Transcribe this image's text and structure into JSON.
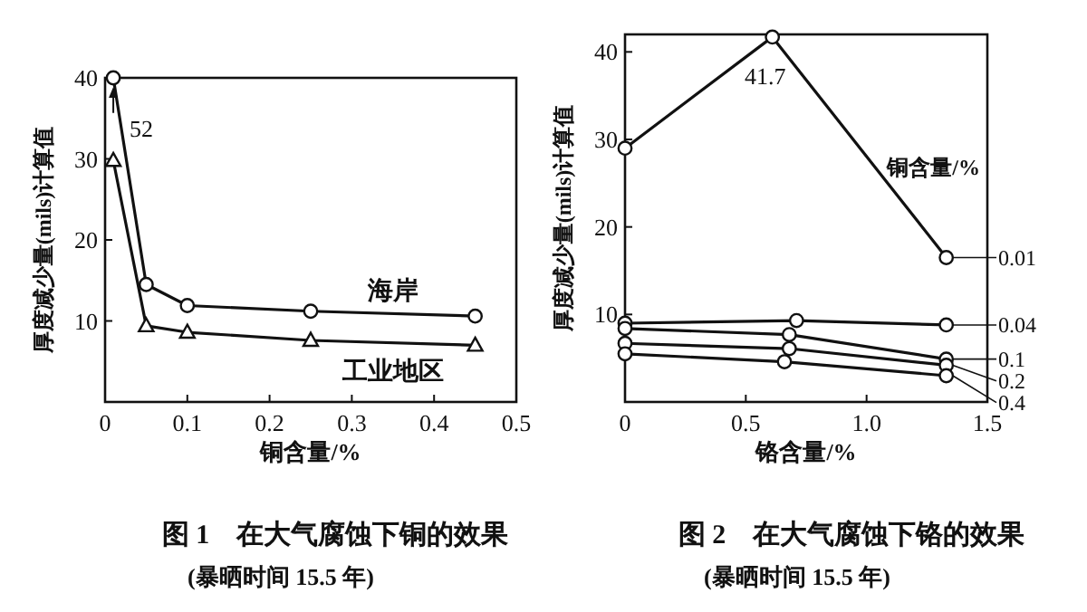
{
  "chart_data": [
    {
      "type": "line",
      "title": "图 1　在大气腐蚀下铜的效果",
      "subtitle": "(暴晒时间 15.5 年)",
      "xlabel": "铜含量/%",
      "ylabel": "厚度减少量(mils)计算值",
      "xlim": [
        0,
        0.5
      ],
      "ylim": [
        0,
        40
      ],
      "xticks": [
        0,
        0.1,
        0.2,
        0.3,
        0.4,
        0.5
      ],
      "yticks": [
        10,
        20,
        30,
        40
      ],
      "grid": false,
      "line_style": "solid",
      "annotations": [
        {
          "text": "52",
          "x": 0.01,
          "y": 35
        }
      ],
      "series": [
        {
          "name": "海岸",
          "color": "#111111",
          "marker": "circle",
          "x": [
            0.01,
            0.05,
            0.1,
            0.25,
            0.45
          ],
          "values": [
            40,
            14.5,
            11.9,
            11.2,
            10.6
          ]
        },
        {
          "name": "工业地区",
          "color": "#111111",
          "marker": "triangle",
          "x": [
            0.01,
            0.05,
            0.1,
            0.25,
            0.45
          ],
          "values": [
            29.8,
            9.4,
            8.6,
            7.6,
            7.0
          ]
        }
      ]
    },
    {
      "type": "line",
      "title": "图 2　在大气腐蚀下铬的效果",
      "subtitle": "(暴晒时间 15.5 年)",
      "xlabel": "铬含量/%",
      "ylabel": "厚度减少量(mils)计算值",
      "legend_title": "铜含量/%",
      "legend": "right",
      "xlim": [
        0,
        1.5
      ],
      "ylim": [
        0,
        42
      ],
      "xticks": [
        0,
        0.5,
        {
          "value": 1,
          "label": "1.0"
        },
        1.5
      ],
      "yticks": [
        10,
        20,
        30,
        40
      ],
      "grid": false,
      "line_style": "solid",
      "marker": "circle",
      "series": [
        {
          "name": "0.01",
          "color": "#111111",
          "x": [
            0,
            0.61,
            1.33
          ],
          "values": [
            29,
            41.7,
            16.5
          ],
          "value_labels": [
            null,
            "41.7",
            null
          ]
        },
        {
          "name": "0.04",
          "color": "#111111",
          "x": [
            0,
            0.71,
            1.33
          ],
          "values": [
            9.0,
            9.3,
            8.8
          ]
        },
        {
          "name": "0.1",
          "color": "#111111",
          "x": [
            0,
            0.68,
            1.33
          ],
          "values": [
            8.4,
            7.7,
            4.9
          ]
        },
        {
          "name": "0.2",
          "color": "#111111",
          "x": [
            0,
            0.68,
            1.33
          ],
          "values": [
            6.7,
            6.1,
            4.2
          ]
        },
        {
          "name": "0.4",
          "color": "#111111",
          "x": [
            0,
            0.66,
            1.33
          ],
          "values": [
            5.5,
            4.6,
            3.0
          ]
        }
      ]
    }
  ]
}
